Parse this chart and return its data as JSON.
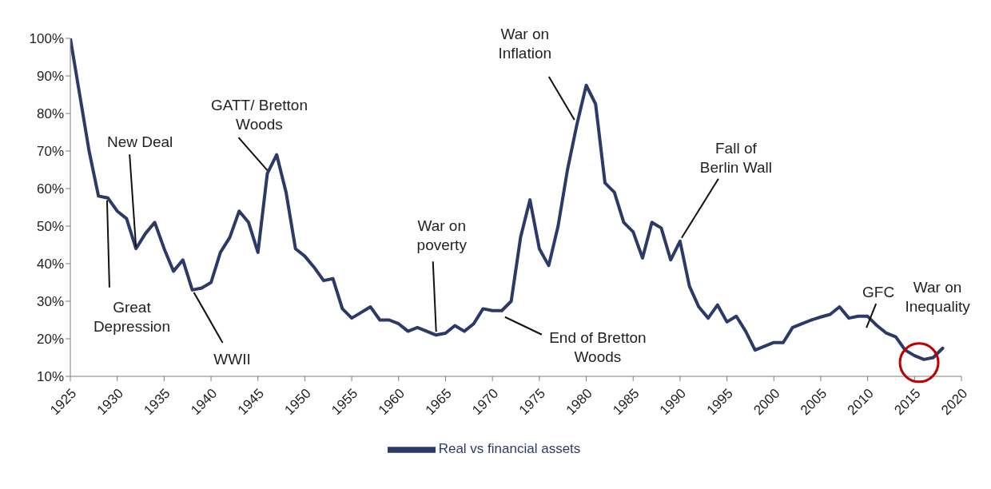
{
  "chart_data": {
    "type": "line",
    "x": [
      1925,
      1926,
      1927,
      1928,
      1929,
      1930,
      1931,
      1932,
      1933,
      1934,
      1935,
      1936,
      1937,
      1938,
      1939,
      1940,
      1941,
      1942,
      1943,
      1944,
      1945,
      1946,
      1947,
      1948,
      1949,
      1950,
      1951,
      1952,
      1953,
      1954,
      1955,
      1956,
      1957,
      1958,
      1959,
      1960,
      1961,
      1962,
      1963,
      1964,
      1965,
      1966,
      1967,
      1968,
      1969,
      1970,
      1971,
      1972,
      1973,
      1974,
      1975,
      1976,
      1977,
      1978,
      1979,
      1980,
      1981,
      1982,
      1983,
      1984,
      1985,
      1986,
      1987,
      1988,
      1989,
      1990,
      1991,
      1992,
      1993,
      1994,
      1995,
      1996,
      1997,
      1998,
      1999,
      2000,
      2001,
      2002,
      2003,
      2004,
      2005,
      2006,
      2007,
      2008,
      2009,
      2010,
      2011,
      2012,
      2013,
      2014,
      2015,
      2016,
      2017,
      2018
    ],
    "series": [
      {
        "name": "Real vs financial assets",
        "color": "#2b3a67",
        "values": [
          100,
          85,
          70,
          58,
          57.5,
          54,
          52,
          44,
          48,
          51,
          44,
          38,
          41,
          33,
          33.5,
          35,
          43,
          47,
          54,
          51,
          43,
          64,
          69,
          59,
          44,
          42,
          39,
          35.5,
          36,
          28,
          25.5,
          27,
          28.5,
          25,
          25,
          24,
          22,
          23,
          22,
          21,
          21.5,
          23.5,
          22,
          24,
          28,
          27.5,
          27.5,
          30,
          47,
          57,
          44,
          39.5,
          50,
          65,
          77,
          87.5,
          82.5,
          61.5,
          59,
          51,
          48.5,
          41.5,
          51,
          49.5,
          41,
          46,
          34,
          28.5,
          25.5,
          29,
          24.5,
          26,
          22,
          17,
          18,
          19,
          19,
          23,
          24,
          25,
          25.8,
          26.5,
          28.5,
          25.5,
          26,
          26,
          23.5,
          21.5,
          20.5,
          17,
          15.5,
          14.5,
          15,
          17.5
        ]
      }
    ],
    "xlim": [
      1925,
      2020
    ],
    "xticks": [
      1925,
      1930,
      1935,
      1940,
      1945,
      1950,
      1955,
      1960,
      1965,
      1970,
      1975,
      1980,
      1985,
      1990,
      1995,
      2000,
      2005,
      2010,
      2015,
      2020
    ],
    "ylim": [
      10,
      100
    ],
    "yticks": [
      {
        "value": 10,
        "label": "10%"
      },
      {
        "value": 20,
        "label": "20%"
      },
      {
        "value": 30,
        "label": "30%"
      },
      {
        "value": 40,
        "label": "40%"
      },
      {
        "value": 50,
        "label": "50%"
      },
      {
        "value": 60,
        "label": "60%"
      },
      {
        "value": 70,
        "label": "70%"
      },
      {
        "value": 80,
        "label": "80%"
      },
      {
        "value": 90,
        "label": "90%"
      },
      {
        "value": 100,
        "label": "100%"
      }
    ],
    "annotations": [
      {
        "text": "Great Depression",
        "x": 1929,
        "y": 57.5
      },
      {
        "text": "New Deal",
        "x": 1932,
        "y": 44
      },
      {
        "text": "GATT/ Bretton Woods",
        "x": 1946,
        "y": 64
      },
      {
        "text": "WWII",
        "x": 1938,
        "y": 33
      },
      {
        "text": "War on poverty",
        "x": 1964,
        "y": 21
      },
      {
        "text": "End of Bretton Woods",
        "x": 1971,
        "y": 27.5
      },
      {
        "text": "War on Inflation",
        "x": 1979,
        "y": 77
      },
      {
        "text": "Fall of Berlin Wall",
        "x": 1990,
        "y": 46
      },
      {
        "text": "GFC",
        "x": 2008,
        "y": 25.5
      },
      {
        "text": "War on Inequality",
        "x": 2016,
        "y": 14.5
      }
    ],
    "grid": false,
    "legend": "bottom",
    "marker": "none",
    "line_style": "solid"
  }
}
